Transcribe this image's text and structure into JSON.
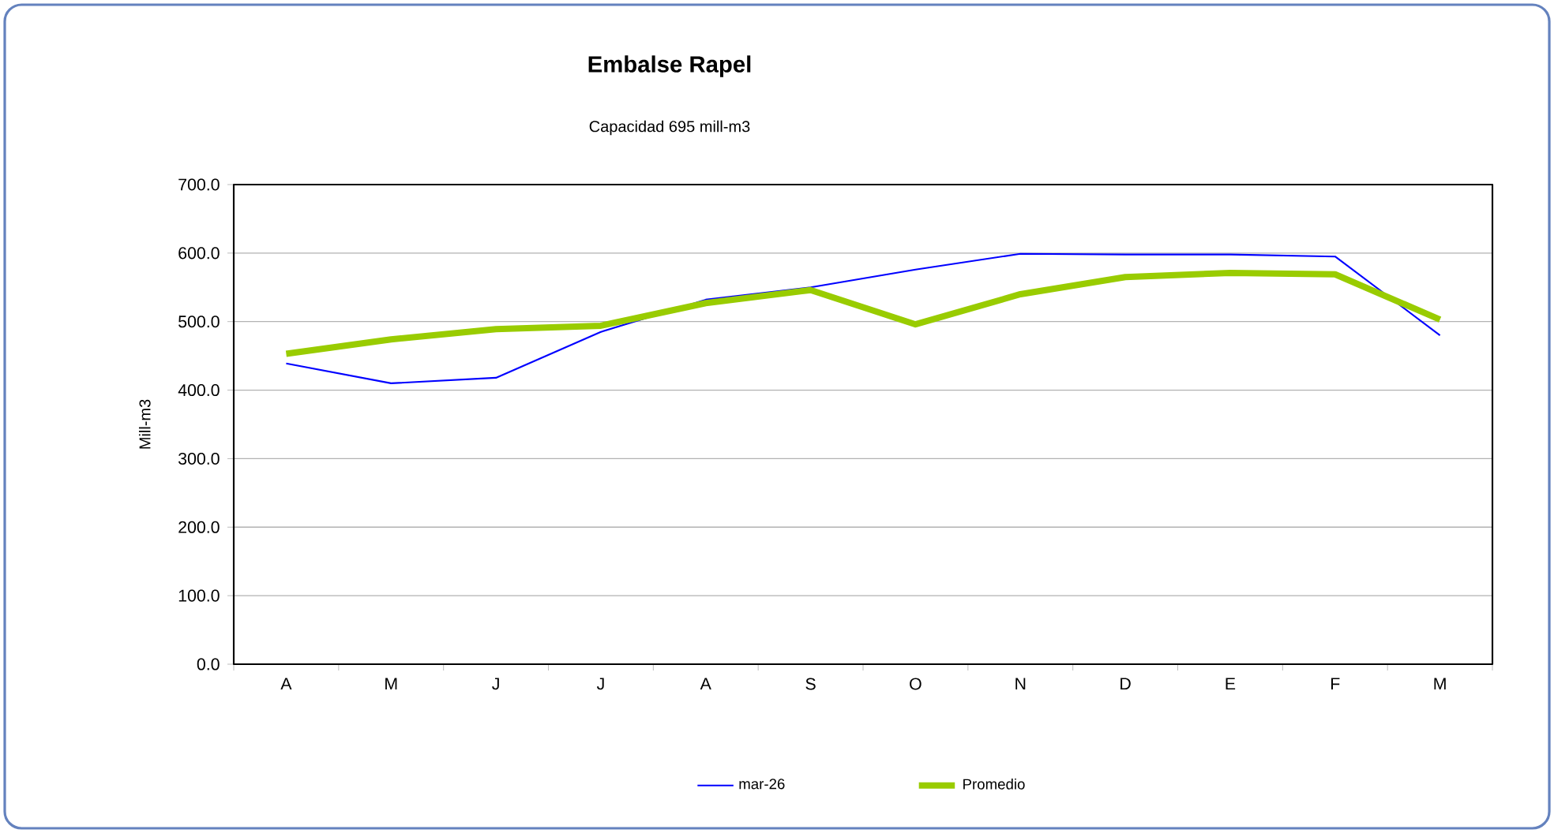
{
  "chart_data": {
    "type": "line",
    "title": "Embalse Rapel",
    "subtitle": "Capacidad 695 mill-m3",
    "ylabel": "Mill-m3",
    "categories": [
      "A",
      "M",
      "J",
      "J",
      "A",
      "S",
      "O",
      "N",
      "D",
      "E",
      "F",
      "M"
    ],
    "series": [
      {
        "name": "mar-26",
        "color": "#0000ff",
        "values": [
          439,
          410,
          418,
          485,
          532,
          550,
          576,
          599,
          598,
          598,
          595,
          480
        ]
      },
      {
        "name": "Promedio",
        "color": "#99cc00",
        "values": [
          453,
          474,
          489,
          494,
          527,
          546,
          496,
          540,
          565,
          571,
          569,
          503
        ]
      }
    ],
    "ylim": [
      0,
      700
    ],
    "yticks": [
      {
        "value": 0,
        "label": "0.0"
      },
      {
        "value": 100,
        "label": "100.0"
      },
      {
        "value": 200,
        "label": "200.0"
      },
      {
        "value": 300,
        "label": "300.0"
      },
      {
        "value": 400,
        "label": "400.0"
      },
      {
        "value": 500,
        "label": "500.0"
      },
      {
        "value": 600,
        "label": "600.0"
      },
      {
        "value": 700,
        "label": "700.0"
      }
    ],
    "grid": "y",
    "legend": "bottom",
    "marker": "none",
    "line_style": "solid"
  }
}
